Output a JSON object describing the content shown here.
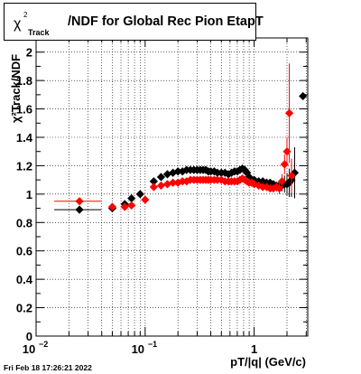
{
  "title": {
    "chi_symbol": "χ",
    "sup": "2",
    "sub": "Track",
    "rest": "/NDF for Global Rec Pion EtapT"
  },
  "footer": "Fri Feb 18 17:26:21 2022",
  "chart_data": {
    "type": "scatter",
    "title": "χ²Track/NDF for Global Rec Pion EtapT",
    "xlabel": "pT/|q| (GeV/c)",
    "ylabel": "χ²Track/NDF",
    "xscale": "log",
    "xlim": [
      0.01,
      3.1
    ],
    "ylim": [
      0,
      2.1
    ],
    "grid": true,
    "yticks": [
      "0",
      "0.2",
      "0.4",
      "0.6",
      "0.8",
      "1",
      "1.2",
      "1.4",
      "1.6",
      "1.8",
      "2"
    ],
    "xticks": [
      {
        "base": "10",
        "exp": "−2",
        "value": 0.01
      },
      {
        "base": "10",
        "exp": "−1",
        "value": 0.1
      },
      {
        "base": "1",
        "exp": "",
        "value": 1
      }
    ],
    "series": [
      {
        "color": "#000000",
        "marker": "diamond",
        "x": [
          0.025,
          0.05,
          0.065,
          0.075,
          0.09,
          0.12,
          0.14,
          0.16,
          0.18,
          0.2,
          0.22,
          0.24,
          0.26,
          0.28,
          0.3,
          0.32,
          0.34,
          0.36,
          0.38,
          0.4,
          0.43,
          0.46,
          0.5,
          0.54,
          0.58,
          0.62,
          0.66,
          0.7,
          0.74,
          0.78,
          0.82,
          0.86,
          0.9,
          0.95,
          1.0,
          1.1,
          1.2,
          1.3,
          1.4,
          1.5,
          1.6,
          1.7,
          1.8,
          1.9,
          2.0,
          2.1,
          2.2,
          2.35,
          2.8
        ],
        "y": [
          0.89,
          0.9,
          0.93,
          0.97,
          1.0,
          1.09,
          1.12,
          1.14,
          1.15,
          1.16,
          1.16,
          1.17,
          1.17,
          1.17,
          1.17,
          1.17,
          1.17,
          1.17,
          1.16,
          1.16,
          1.16,
          1.15,
          1.15,
          1.15,
          1.14,
          1.15,
          1.16,
          1.16,
          1.17,
          1.18,
          1.17,
          1.15,
          1.12,
          1.1,
          1.1,
          1.09,
          1.09,
          1.08,
          1.08,
          1.07,
          1.06,
          1.06,
          1.06,
          1.07,
          1.07,
          1.08,
          1.1,
          1.15,
          1.69
        ],
        "err": [
          0.005,
          0.01,
          0.01,
          0.01,
          0.01,
          0.01,
          0.01,
          0.01,
          0.01,
          0.01,
          0.01,
          0.01,
          0.01,
          0.01,
          0.01,
          0.01,
          0.01,
          0.01,
          0.01,
          0.01,
          0.01,
          0.01,
          0.01,
          0.01,
          0.01,
          0.01,
          0.01,
          0.01,
          0.01,
          0.01,
          0.01,
          0.01,
          0.01,
          0.01,
          0.01,
          0.01,
          0.01,
          0.01,
          0.01,
          0.02,
          0.02,
          0.03,
          0.04,
          0.06,
          0.08,
          0.1,
          0.12,
          0.18,
          0.0
        ]
      },
      {
        "color": "#ff0000",
        "marker": "diamond",
        "x": [
          0.025,
          0.05,
          0.065,
          0.075,
          0.1,
          0.12,
          0.14,
          0.16,
          0.18,
          0.2,
          0.22,
          0.24,
          0.26,
          0.28,
          0.3,
          0.32,
          0.34,
          0.36,
          0.38,
          0.4,
          0.43,
          0.46,
          0.5,
          0.54,
          0.58,
          0.62,
          0.66,
          0.7,
          0.74,
          0.78,
          0.82,
          0.86,
          0.9,
          0.95,
          1.0,
          1.1,
          1.2,
          1.3,
          1.4,
          1.5,
          1.6,
          1.7,
          1.8,
          1.9,
          2.0,
          2.1,
          2.2
        ],
        "y": [
          0.95,
          0.91,
          0.91,
          0.92,
          0.96,
          1.05,
          1.06,
          1.07,
          1.08,
          1.08,
          1.09,
          1.09,
          1.1,
          1.1,
          1.1,
          1.1,
          1.1,
          1.1,
          1.1,
          1.1,
          1.1,
          1.1,
          1.1,
          1.09,
          1.09,
          1.09,
          1.09,
          1.09,
          1.1,
          1.11,
          1.1,
          1.09,
          1.08,
          1.08,
          1.07,
          1.06,
          1.05,
          1.05,
          1.04,
          1.04,
          1.05,
          1.04,
          1.09,
          1.21,
          1.3,
          1.57,
          1.13
        ],
        "err": [
          0.005,
          0.01,
          0.01,
          0.01,
          0.01,
          0.01,
          0.01,
          0.01,
          0.01,
          0.01,
          0.01,
          0.01,
          0.01,
          0.01,
          0.01,
          0.01,
          0.01,
          0.01,
          0.01,
          0.01,
          0.01,
          0.01,
          0.01,
          0.01,
          0.01,
          0.01,
          0.01,
          0.01,
          0.01,
          0.01,
          0.01,
          0.01,
          0.01,
          0.01,
          0.01,
          0.01,
          0.01,
          0.01,
          0.01,
          0.02,
          0.03,
          0.04,
          0.05,
          0.07,
          0.1,
          0.35,
          0.12
        ]
      }
    ]
  }
}
